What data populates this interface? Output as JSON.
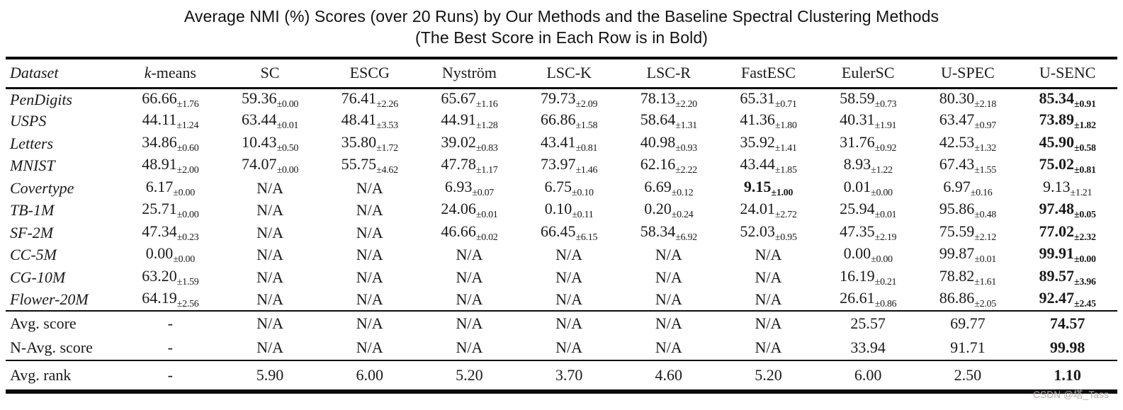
{
  "title": {
    "line1": "Average NMI (%) Scores (over 20 Runs) by Our Methods and the Baseline Spectral Clustering Methods",
    "line2": "(The Best Score in Each Row is in Bold)"
  },
  "colors": {
    "ink": "#161616",
    "rule": "#0c0c0c",
    "watermark": "#b9aeae"
  },
  "table": {
    "columns": [
      {
        "label": "Dataset",
        "italic": true
      },
      {
        "label": "k-means",
        "italic_first_char": true
      },
      {
        "label": "SC"
      },
      {
        "label": "ESCG"
      },
      {
        "label": "Nyström"
      },
      {
        "label": "LSC-K"
      },
      {
        "label": "LSC-R"
      },
      {
        "label": "FastESC"
      },
      {
        "label": "EulerSC"
      },
      {
        "label": "U-SPEC"
      },
      {
        "label": "U-SENC"
      }
    ],
    "rows": [
      {
        "dataset": "PenDigits",
        "cells": [
          {
            "v": "66.66",
            "s": "±1.76"
          },
          {
            "v": "59.36",
            "s": "±0.00"
          },
          {
            "v": "76.41",
            "s": "±2.26"
          },
          {
            "v": "65.67",
            "s": "±1.16"
          },
          {
            "v": "79.73",
            "s": "±2.09"
          },
          {
            "v": "78.13",
            "s": "±2.20"
          },
          {
            "v": "65.31",
            "s": "±0.71"
          },
          {
            "v": "58.59",
            "s": "±0.73"
          },
          {
            "v": "80.30",
            "s": "±2.18"
          },
          {
            "v": "85.34",
            "s": "±0.91",
            "b": true
          }
        ]
      },
      {
        "dataset": "USPS",
        "cells": [
          {
            "v": "44.11",
            "s": "±1.24"
          },
          {
            "v": "63.44",
            "s": "±0.01"
          },
          {
            "v": "48.41",
            "s": "±3.53"
          },
          {
            "v": "44.91",
            "s": "±1.28"
          },
          {
            "v": "66.86",
            "s": "±1.58"
          },
          {
            "v": "58.64",
            "s": "±1.31"
          },
          {
            "v": "41.36",
            "s": "±1.80"
          },
          {
            "v": "40.31",
            "s": "±1.91"
          },
          {
            "v": "63.47",
            "s": "±0.97"
          },
          {
            "v": "73.89",
            "s": "±1.82",
            "b": true
          }
        ]
      },
      {
        "dataset": "Letters",
        "cells": [
          {
            "v": "34.86",
            "s": "±0.60"
          },
          {
            "v": "10.43",
            "s": "±0.50"
          },
          {
            "v": "35.80",
            "s": "±1.72"
          },
          {
            "v": "39.02",
            "s": "±0.83"
          },
          {
            "v": "43.41",
            "s": "±0.81"
          },
          {
            "v": "40.98",
            "s": "±0.93"
          },
          {
            "v": "35.92",
            "s": "±1.41"
          },
          {
            "v": "31.76",
            "s": "±0.92"
          },
          {
            "v": "42.53",
            "s": "±1.32"
          },
          {
            "v": "45.90",
            "s": "±0.58",
            "b": true
          }
        ]
      },
      {
        "dataset": "MNIST",
        "cells": [
          {
            "v": "48.91",
            "s": "±2.00"
          },
          {
            "v": "74.07",
            "s": "±0.00"
          },
          {
            "v": "55.75",
            "s": "±4.62"
          },
          {
            "v": "47.78",
            "s": "±1.17"
          },
          {
            "v": "73.97",
            "s": "±1.46"
          },
          {
            "v": "62.16",
            "s": "±2.22"
          },
          {
            "v": "43.44",
            "s": "±1.85"
          },
          {
            "v": "8.93",
            "s": "±1.22"
          },
          {
            "v": "67.43",
            "s": "±1.55"
          },
          {
            "v": "75.02",
            "s": "±0.81",
            "b": true
          }
        ]
      },
      {
        "dataset": "Covertype",
        "cells": [
          {
            "v": "6.17",
            "s": "±0.00"
          },
          {
            "v": "N/A"
          },
          {
            "v": "N/A"
          },
          {
            "v": "6.93",
            "s": "±0.07"
          },
          {
            "v": "6.75",
            "s": "±0.10"
          },
          {
            "v": "6.69",
            "s": "±0.12"
          },
          {
            "v": "9.15",
            "s": "±1.00",
            "b": true
          },
          {
            "v": "0.01",
            "s": "±0.00"
          },
          {
            "v": "6.97",
            "s": "±0.16"
          },
          {
            "v": "9.13",
            "s": "±1.21"
          }
        ]
      },
      {
        "dataset": "TB-1M",
        "cells": [
          {
            "v": "25.71",
            "s": "±0.00"
          },
          {
            "v": "N/A"
          },
          {
            "v": "N/A"
          },
          {
            "v": "24.06",
            "s": "±0.01"
          },
          {
            "v": "0.10",
            "s": "±0.11"
          },
          {
            "v": "0.20",
            "s": "±0.24"
          },
          {
            "v": "24.01",
            "s": "±2.72"
          },
          {
            "v": "25.94",
            "s": "±0.01"
          },
          {
            "v": "95.86",
            "s": "±0.48"
          },
          {
            "v": "97.48",
            "s": "±0.05",
            "b": true
          }
        ]
      },
      {
        "dataset": "SF-2M",
        "cells": [
          {
            "v": "47.34",
            "s": "±0.23"
          },
          {
            "v": "N/A"
          },
          {
            "v": "N/A"
          },
          {
            "v": "46.66",
            "s": "±0.02"
          },
          {
            "v": "66.45",
            "s": "±6.15"
          },
          {
            "v": "58.34",
            "s": "±6.92"
          },
          {
            "v": "52.03",
            "s": "±0.95"
          },
          {
            "v": "47.35",
            "s": "±2.19"
          },
          {
            "v": "75.59",
            "s": "±2.12"
          },
          {
            "v": "77.02",
            "s": "±2.32",
            "b": true
          }
        ]
      },
      {
        "dataset": "CC-5M",
        "cells": [
          {
            "v": "0.00",
            "s": "±0.00"
          },
          {
            "v": "N/A"
          },
          {
            "v": "N/A"
          },
          {
            "v": "N/A"
          },
          {
            "v": "N/A"
          },
          {
            "v": "N/A"
          },
          {
            "v": "N/A"
          },
          {
            "v": "0.00",
            "s": "±0.00"
          },
          {
            "v": "99.87",
            "s": "±0.01"
          },
          {
            "v": "99.91",
            "s": "±0.00",
            "b": true
          }
        ]
      },
      {
        "dataset": "CG-10M",
        "cells": [
          {
            "v": "63.20",
            "s": "±1.59"
          },
          {
            "v": "N/A"
          },
          {
            "v": "N/A"
          },
          {
            "v": "N/A"
          },
          {
            "v": "N/A"
          },
          {
            "v": "N/A"
          },
          {
            "v": "N/A"
          },
          {
            "v": "16.19",
            "s": "±0.21"
          },
          {
            "v": "78.82",
            "s": "±1.61"
          },
          {
            "v": "89.57",
            "s": "±3.96",
            "b": true
          }
        ]
      },
      {
        "dataset": "Flower-20M",
        "cells": [
          {
            "v": "64.19",
            "s": "±2.56"
          },
          {
            "v": "N/A"
          },
          {
            "v": "N/A"
          },
          {
            "v": "N/A"
          },
          {
            "v": "N/A"
          },
          {
            "v": "N/A"
          },
          {
            "v": "N/A"
          },
          {
            "v": "26.61",
            "s": "±0.86"
          },
          {
            "v": "86.86",
            "s": "±2.05"
          },
          {
            "v": "92.47",
            "s": "±2.45",
            "b": true
          }
        ]
      }
    ],
    "summary_rows": [
      {
        "label": "Avg. score",
        "cells": [
          {
            "v": "-"
          },
          {
            "v": "N/A"
          },
          {
            "v": "N/A"
          },
          {
            "v": "N/A"
          },
          {
            "v": "N/A"
          },
          {
            "v": "N/A"
          },
          {
            "v": "N/A"
          },
          {
            "v": "25.57"
          },
          {
            "v": "69.77"
          },
          {
            "v": "74.57",
            "b": true
          }
        ]
      },
      {
        "label": "N-Avg. score",
        "cells": [
          {
            "v": "-"
          },
          {
            "v": "N/A"
          },
          {
            "v": "N/A"
          },
          {
            "v": "N/A"
          },
          {
            "v": "N/A"
          },
          {
            "v": "N/A"
          },
          {
            "v": "N/A"
          },
          {
            "v": "33.94"
          },
          {
            "v": "91.71"
          },
          {
            "v": "99.98",
            "b": true
          }
        ]
      }
    ],
    "rank_rows": [
      {
        "label": "Avg. rank",
        "cells": [
          {
            "v": "-"
          },
          {
            "v": "5.90"
          },
          {
            "v": "6.00"
          },
          {
            "v": "5.20"
          },
          {
            "v": "3.70"
          },
          {
            "v": "4.60"
          },
          {
            "v": "5.20"
          },
          {
            "v": "6.00"
          },
          {
            "v": "2.50"
          },
          {
            "v": "1.10",
            "b": true
          }
        ]
      }
    ]
  },
  "watermark": {
    "text": "CSDN @塔_Tass"
  }
}
